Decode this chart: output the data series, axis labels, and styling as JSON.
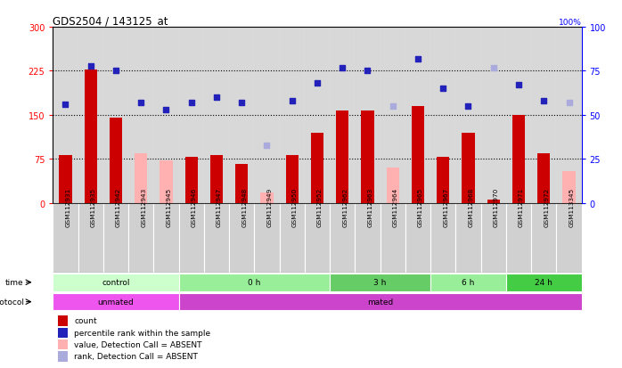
{
  "title": "GDS2504 / 143125_at",
  "samples": [
    "GSM112931",
    "GSM112935",
    "GSM112942",
    "GSM112943",
    "GSM112945",
    "GSM112946",
    "GSM112947",
    "GSM112948",
    "GSM112949",
    "GSM112950",
    "GSM112952",
    "GSM112962",
    "GSM112963",
    "GSM112964",
    "GSM112965",
    "GSM112967",
    "GSM112968",
    "GSM112970",
    "GSM112971",
    "GSM112972",
    "GSM113345"
  ],
  "count_values": [
    82,
    228,
    145,
    85,
    72,
    78,
    82,
    67,
    18,
    82,
    120,
    158,
    157,
    60,
    165,
    78,
    120,
    5,
    150,
    85,
    55
  ],
  "count_absent": [
    false,
    false,
    false,
    true,
    true,
    false,
    false,
    false,
    true,
    false,
    false,
    false,
    false,
    true,
    false,
    false,
    false,
    false,
    false,
    false,
    true
  ],
  "rank_values": [
    56,
    78,
    75,
    57,
    53,
    57,
    60,
    57,
    33,
    58,
    68,
    77,
    75,
    55,
    82,
    65,
    55,
    77,
    67,
    58,
    57
  ],
  "rank_absent": [
    false,
    false,
    false,
    false,
    false,
    false,
    false,
    false,
    true,
    false,
    false,
    false,
    false,
    true,
    false,
    false,
    false,
    true,
    false,
    false,
    true
  ],
  "count_color": "#cc0000",
  "count_absent_color": "#ffb0b0",
  "rank_color": "#2222bb",
  "rank_absent_color": "#aaaadd",
  "ylim_left": [
    0,
    300
  ],
  "ylim_right": [
    0,
    100
  ],
  "yticks_left": [
    0,
    75,
    150,
    225,
    300
  ],
  "yticks_right": [
    0,
    25,
    50,
    75,
    100
  ],
  "hlines": [
    75,
    150,
    225
  ],
  "time_groups": [
    {
      "label": "control",
      "start": 0,
      "end": 5,
      "color": "#ccffcc"
    },
    {
      "label": "0 h",
      "start": 5,
      "end": 11,
      "color": "#99ee99"
    },
    {
      "label": "3 h",
      "start": 11,
      "end": 15,
      "color": "#66cc66"
    },
    {
      "label": "6 h",
      "start": 15,
      "end": 18,
      "color": "#99ee99"
    },
    {
      "label": "24 h",
      "start": 18,
      "end": 21,
      "color": "#44cc44"
    }
  ],
  "protocol_groups": [
    {
      "label": "unmated",
      "start": 0,
      "end": 5,
      "color": "#ee55ee"
    },
    {
      "label": "mated",
      "start": 5,
      "end": 21,
      "color": "#cc44cc"
    }
  ],
  "legend_items": [
    {
      "label": "count",
      "color": "#cc0000"
    },
    {
      "label": "percentile rank within the sample",
      "color": "#2222bb"
    },
    {
      "label": "value, Detection Call = ABSENT",
      "color": "#ffb0b0"
    },
    {
      "label": "rank, Detection Call = ABSENT",
      "color": "#aaaadd"
    }
  ],
  "fig_bg": "#ffffff",
  "plot_bg": "#ffffff",
  "col_bg": "#d8d8d8"
}
